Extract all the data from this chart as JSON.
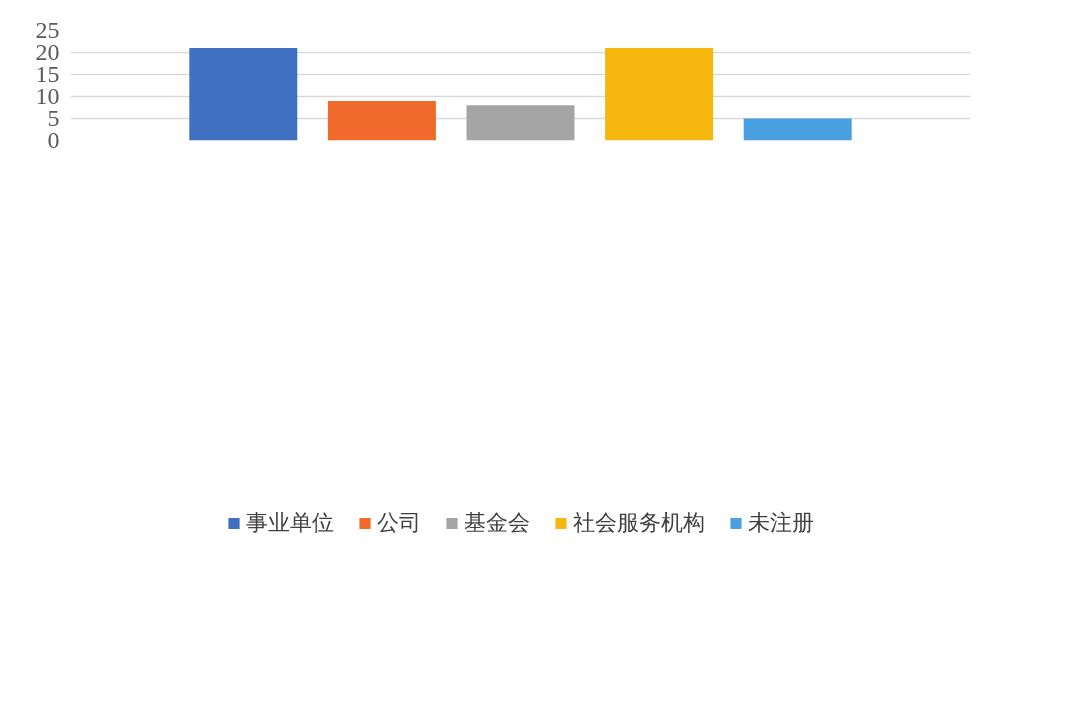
{
  "chart_data": {
    "type": "bar",
    "categories": [
      null
    ],
    "series": [
      {
        "name": "事业单位",
        "color": "#4070c2",
        "values": [
          21
        ]
      },
      {
        "name": "公司",
        "color": "#f06a2b",
        "values": [
          9
        ]
      },
      {
        "name": "基金会",
        "color": "#a5a5a5",
        "values": [
          8
        ]
      },
      {
        "name": "社会服务机构",
        "color": "#f6b80f",
        "values": [
          21
        ]
      },
      {
        "name": "未注册",
        "color": "#4a9fe0",
        "values": [
          5
        ]
      }
    ],
    "ylim": [
      0,
      25
    ],
    "yticks": [
      0,
      5,
      10,
      15,
      20,
      25
    ],
    "grid": "y",
    "legend": "bottom"
  }
}
